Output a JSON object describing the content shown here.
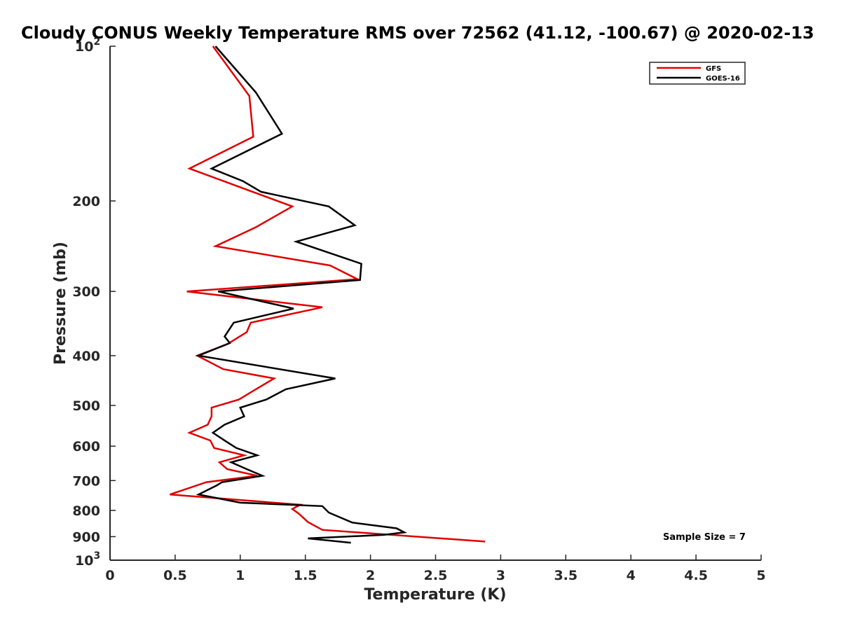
{
  "chart_data": {
    "type": "line",
    "title": "Cloudy CONUS Weekly Temperature RMS over 72562 (41.12, -100.67) @ 2020-02-13",
    "xlabel": "Temperature (K)",
    "ylabel": "Pressure (mb)",
    "xlim": [
      0,
      5
    ],
    "ylim": [
      100,
      1000
    ],
    "y_scale": "log",
    "y_reversed": true,
    "grid": false,
    "legend_position": "top-right",
    "x_ticks": [
      "0",
      "0.5",
      "1",
      "1.5",
      "2",
      "2.5",
      "3",
      "3.5",
      "4",
      "4.5",
      "5"
    ],
    "x_tick_values": [
      0,
      0.5,
      1,
      1.5,
      2,
      2.5,
      3,
      3.5,
      4,
      4.5,
      5
    ],
    "y_ticks": [
      {
        "value": 100,
        "label": "10",
        "sup": "2"
      },
      {
        "value": 200,
        "label": "200",
        "sup": ""
      },
      {
        "value": 300,
        "label": "300",
        "sup": ""
      },
      {
        "value": 400,
        "label": "400",
        "sup": ""
      },
      {
        "value": 500,
        "label": "500",
        "sup": ""
      },
      {
        "value": 600,
        "label": "600",
        "sup": ""
      },
      {
        "value": 700,
        "label": "700",
        "sup": ""
      },
      {
        "value": 800,
        "label": "800",
        "sup": ""
      },
      {
        "value": 900,
        "label": "900",
        "sup": ""
      },
      {
        "value": 1000,
        "label": "10",
        "sup": "3"
      }
    ],
    "series": [
      {
        "name": "GFS",
        "color": "#e00000",
        "points": [
          [
            0.79,
            100
          ],
          [
            1.07,
            125
          ],
          [
            1.1,
            150
          ],
          [
            0.61,
            173
          ],
          [
            1.4,
            205
          ],
          [
            1.12,
            225
          ],
          [
            0.81,
            245
          ],
          [
            1.69,
            267
          ],
          [
            1.9,
            284
          ],
          [
            0.59,
            300
          ],
          [
            1.63,
            322
          ],
          [
            1.08,
            345
          ],
          [
            1.05,
            360
          ],
          [
            0.9,
            380
          ],
          [
            0.67,
            400
          ],
          [
            0.87,
            425
          ],
          [
            1.26,
            443
          ],
          [
            1.12,
            465
          ],
          [
            0.99,
            487
          ],
          [
            0.78,
            505
          ],
          [
            0.78,
            525
          ],
          [
            0.75,
            545
          ],
          [
            0.61,
            565
          ],
          [
            0.77,
            585
          ],
          [
            0.8,
            605
          ],
          [
            1.03,
            625
          ],
          [
            0.84,
            645
          ],
          [
            0.9,
            665
          ],
          [
            1.13,
            685
          ],
          [
            0.74,
            705
          ],
          [
            0.46,
            745
          ],
          [
            1.46,
            780
          ],
          [
            1.4,
            795
          ],
          [
            1.45,
            812
          ],
          [
            1.52,
            843
          ],
          [
            1.63,
            873
          ],
          [
            2.88,
            920
          ]
        ]
      },
      {
        "name": "GOES-16",
        "color": "#000000",
        "points": [
          [
            0.81,
            100
          ],
          [
            1.12,
            123
          ],
          [
            1.32,
            148
          ],
          [
            0.78,
            173
          ],
          [
            1.02,
            183
          ],
          [
            1.16,
            192
          ],
          [
            1.68,
            205
          ],
          [
            1.88,
            223
          ],
          [
            1.43,
            240
          ],
          [
            1.93,
            265
          ],
          [
            1.92,
            285
          ],
          [
            0.83,
            300
          ],
          [
            1.41,
            324
          ],
          [
            0.95,
            345
          ],
          [
            0.88,
            367
          ],
          [
            0.92,
            378
          ],
          [
            0.68,
            400
          ],
          [
            1.73,
            443
          ],
          [
            1.35,
            465
          ],
          [
            1.2,
            487
          ],
          [
            1.0,
            505
          ],
          [
            1.03,
            525
          ],
          [
            0.88,
            545
          ],
          [
            0.79,
            565
          ],
          [
            0.88,
            585
          ],
          [
            0.97,
            605
          ],
          [
            1.13,
            625
          ],
          [
            0.93,
            645
          ],
          [
            1.05,
            665
          ],
          [
            1.17,
            685
          ],
          [
            0.86,
            705
          ],
          [
            0.82,
            715
          ],
          [
            0.68,
            745
          ],
          [
            1.0,
            773
          ],
          [
            1.63,
            785
          ],
          [
            1.68,
            808
          ],
          [
            1.86,
            845
          ],
          [
            2.2,
            867
          ],
          [
            2.26,
            883
          ],
          [
            2.1,
            893
          ],
          [
            1.52,
            907
          ],
          [
            1.85,
            925
          ]
        ]
      }
    ],
    "annotation": "Sample Size = 7"
  },
  "colors": {
    "axis": "#262626",
    "legend_border": "#262626",
    "background": "#ffffff"
  }
}
